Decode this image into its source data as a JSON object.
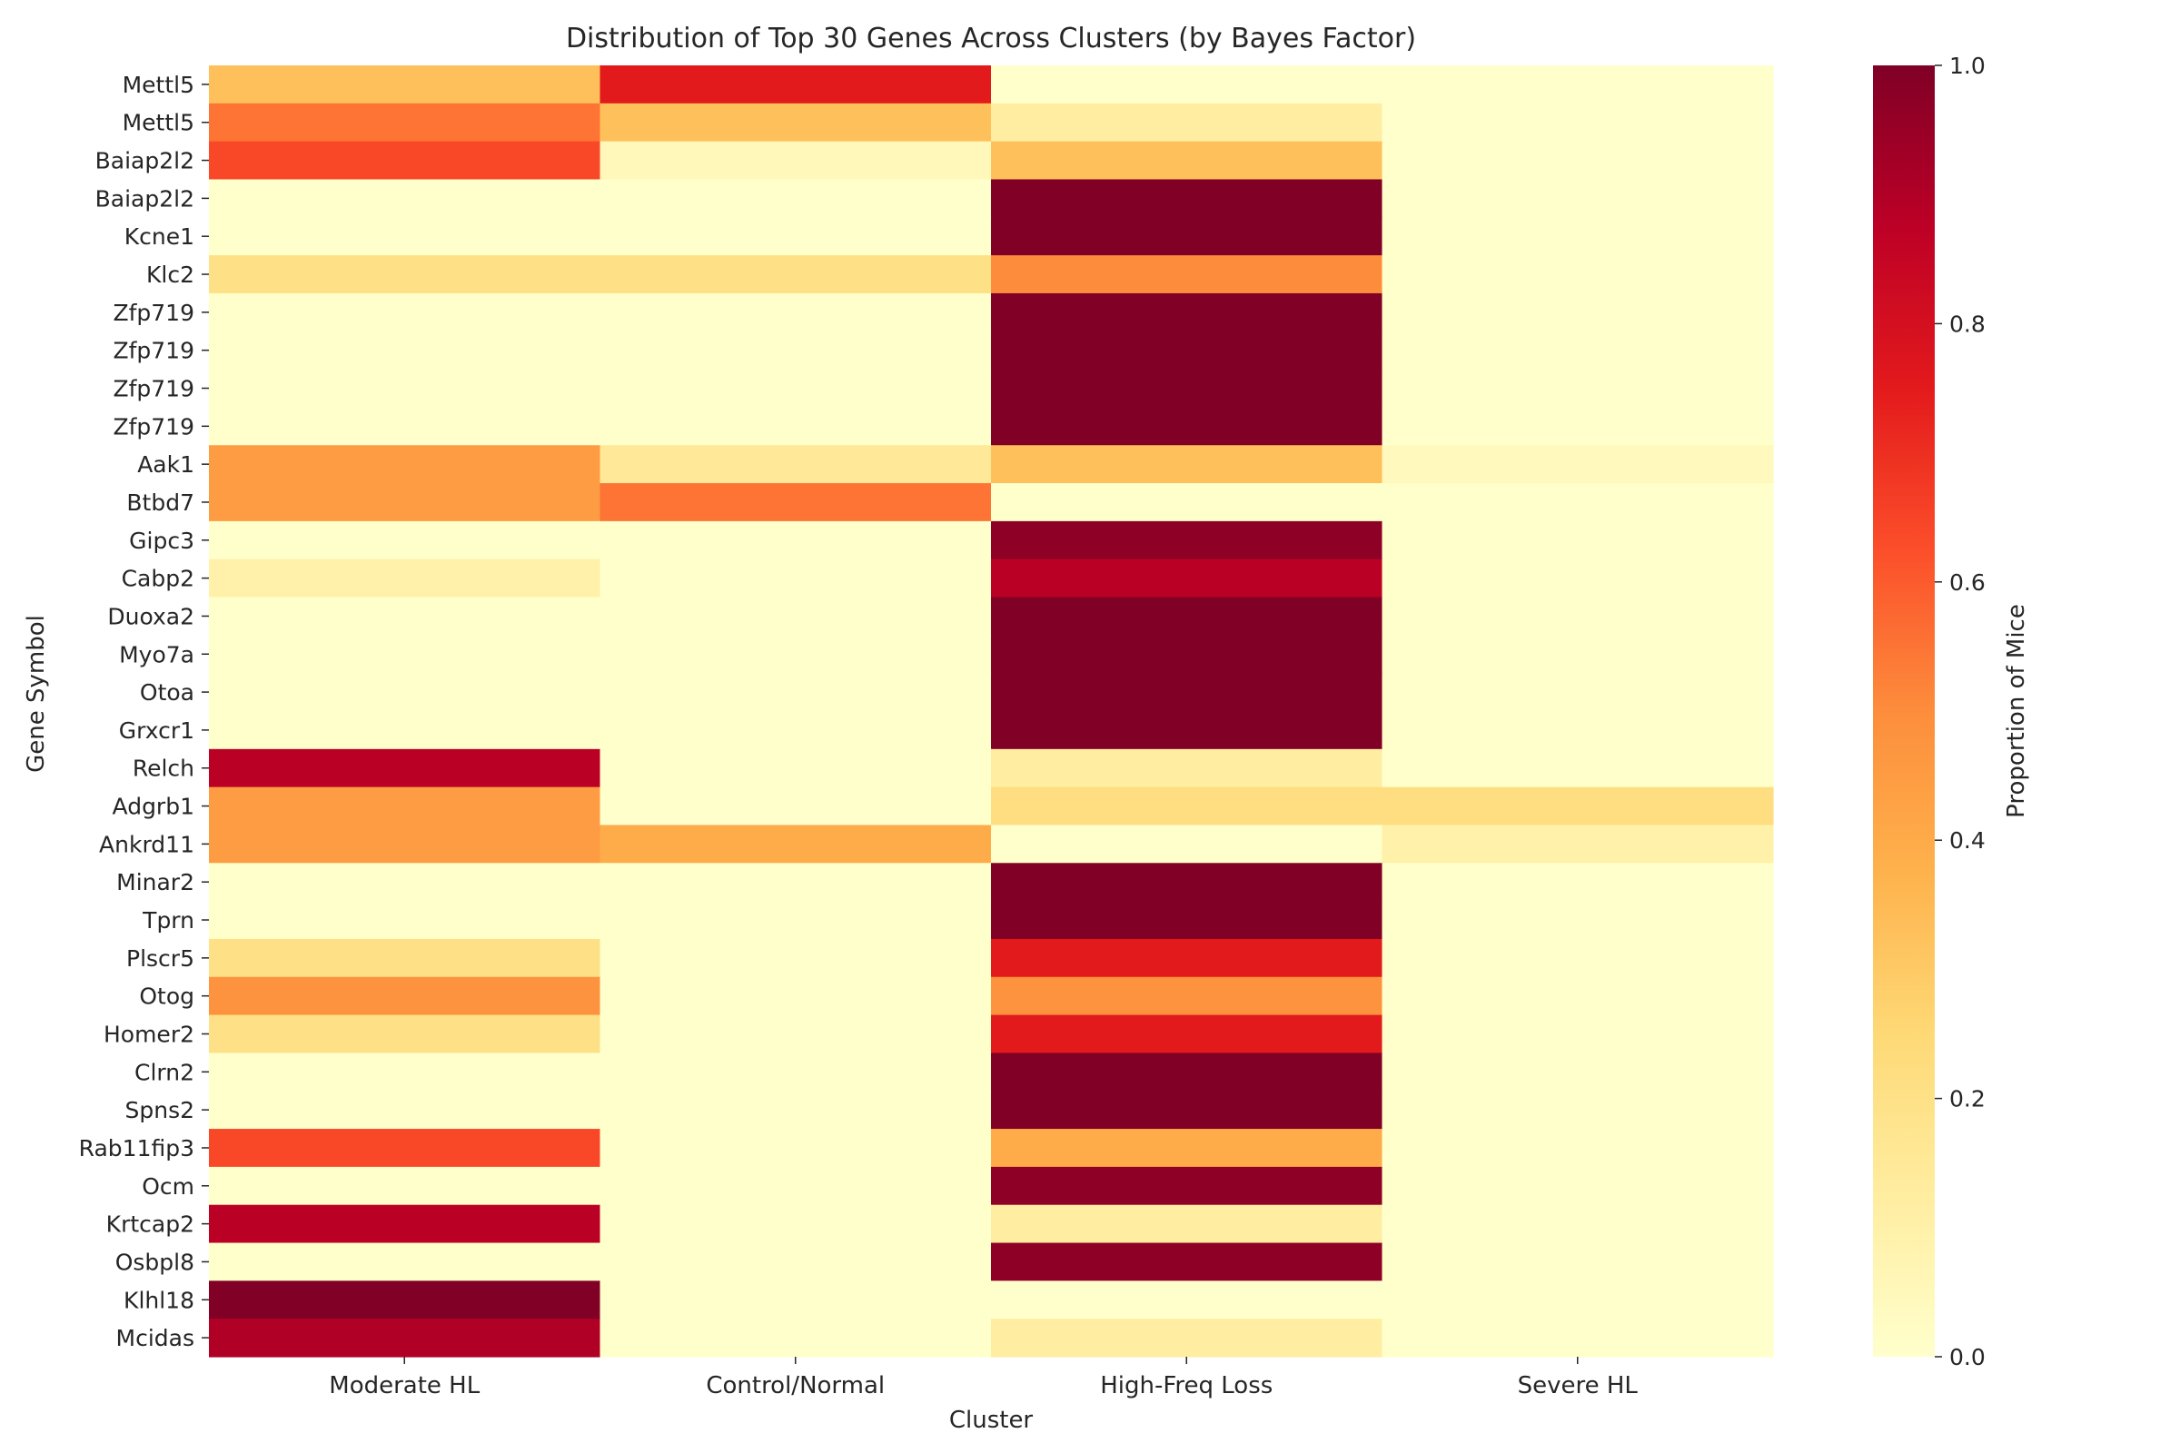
{
  "chart_data": {
    "type": "heatmap",
    "title": "Distribution of Top 30 Genes Across Clusters (by Bayes Factor)",
    "xlabel": "Cluster",
    "ylabel": "Gene Symbol",
    "columns": [
      "Moderate HL",
      "Control/Normal",
      "High-Freq Loss",
      "Severe HL"
    ],
    "rows": [
      "Mettl5",
      "Mettl5",
      "Baiap2l2",
      "Baiap2l2",
      "Kcne1",
      "Klc2",
      "Zfp719",
      "Zfp719",
      "Zfp719",
      "Zfp719",
      "Aak1",
      "Btbd7",
      "Gipc3",
      "Cabp2",
      "Duoxa2",
      "Myo7a",
      "Otoa",
      "Grxcr1",
      "Relch",
      "Adgrb1",
      "Ankrd11",
      "Minar2",
      "Tprn",
      "Plscr5",
      "Otog",
      "Homer2",
      "Clrn2",
      "Spns2",
      "Rab11fip3",
      "Ocm",
      "Krtcap2",
      "Osbpl8",
      "Klhl18",
      "Mcidas"
    ],
    "values": [
      [
        0.33,
        0.75,
        0.0,
        0.0
      ],
      [
        0.55,
        0.33,
        0.12,
        0.0
      ],
      [
        0.64,
        0.05,
        0.33,
        0.0
      ],
      [
        0.0,
        0.0,
        1.0,
        0.0
      ],
      [
        0.0,
        0.0,
        1.0,
        0.0
      ],
      [
        0.2,
        0.2,
        0.5,
        0.0
      ],
      [
        0.0,
        0.0,
        1.0,
        0.0
      ],
      [
        0.0,
        0.0,
        1.0,
        0.0
      ],
      [
        0.0,
        0.0,
        1.0,
        0.0
      ],
      [
        0.0,
        0.0,
        1.0,
        0.0
      ],
      [
        0.45,
        0.15,
        0.33,
        0.04
      ],
      [
        0.45,
        0.55,
        0.0,
        0.0
      ],
      [
        0.0,
        0.0,
        0.97,
        0.0
      ],
      [
        0.1,
        0.0,
        0.88,
        0.0
      ],
      [
        0.0,
        0.0,
        1.0,
        0.0
      ],
      [
        0.0,
        0.0,
        1.0,
        0.0
      ],
      [
        0.0,
        0.0,
        1.0,
        0.0
      ],
      [
        0.0,
        0.0,
        1.0,
        0.0
      ],
      [
        0.88,
        0.0,
        0.12,
        0.0
      ],
      [
        0.45,
        0.0,
        0.22,
        0.22
      ],
      [
        0.45,
        0.4,
        0.0,
        0.1
      ],
      [
        0.0,
        0.0,
        1.0,
        0.0
      ],
      [
        0.0,
        0.0,
        1.0,
        0.0
      ],
      [
        0.2,
        0.0,
        0.75,
        0.0
      ],
      [
        0.48,
        0.0,
        0.48,
        0.0
      ],
      [
        0.2,
        0.0,
        0.75,
        0.0
      ],
      [
        0.0,
        0.0,
        1.0,
        0.0
      ],
      [
        0.0,
        0.0,
        1.0,
        0.0
      ],
      [
        0.64,
        0.0,
        0.4,
        0.0
      ],
      [
        0.0,
        0.0,
        0.97,
        0.0
      ],
      [
        0.88,
        0.0,
        0.12,
        0.0
      ],
      [
        0.0,
        0.0,
        0.97,
        0.0
      ],
      [
        1.0,
        0.0,
        0.0,
        0.0
      ],
      [
        0.9,
        0.0,
        0.12,
        0.0
      ]
    ],
    "colormap": "YlOrRd",
    "colormap_stops": [
      "#ffffcc",
      "#ffeda0",
      "#fed976",
      "#feb24c",
      "#fd8d3c",
      "#fc4e2a",
      "#e31a1c",
      "#bd0026",
      "#800026"
    ],
    "vmin": 0.0,
    "vmax": 1.0,
    "colorbar": {
      "label": "Proportion of Mice",
      "ticks": [
        0.0,
        0.2,
        0.4,
        0.6,
        0.8,
        1.0
      ],
      "tick_labels": [
        "0.0",
        "0.2",
        "0.4",
        "0.6",
        "0.8",
        "1.0"
      ]
    }
  }
}
